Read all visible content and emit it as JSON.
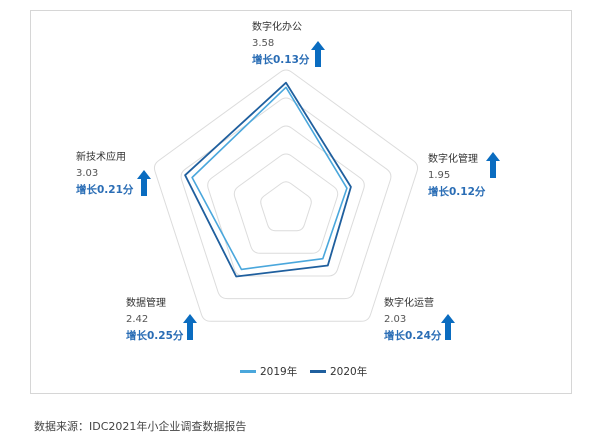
{
  "chart_data": {
    "type": "radar",
    "axes": [
      "数字化办公",
      "数字化管理",
      "数字化运营",
      "数据管理",
      "新技术应用"
    ],
    "values_2020": [
      "3.58",
      "1.95",
      "2.03",
      "2.42",
      "3.03"
    ],
    "increases": [
      "增长0.13分",
      "增长0.12分",
      "增长0.24分",
      "增长0.25分",
      "增长0.21分"
    ],
    "series": [
      {
        "name": "2019年",
        "color": "#4aa7dc",
        "values": [
          3.45,
          1.83,
          1.79,
          2.17,
          2.82
        ]
      },
      {
        "name": "2020年",
        "color": "#1f5f9e",
        "values": [
          3.58,
          1.95,
          2.03,
          2.42,
          3.03
        ]
      }
    ],
    "scale_max": 4,
    "grid_levels": 5,
    "arrow_color": "#0a6cc0",
    "grid_color": "#dcdcdc"
  },
  "source": "数据来源：IDC2021年小企业调查数据报告"
}
